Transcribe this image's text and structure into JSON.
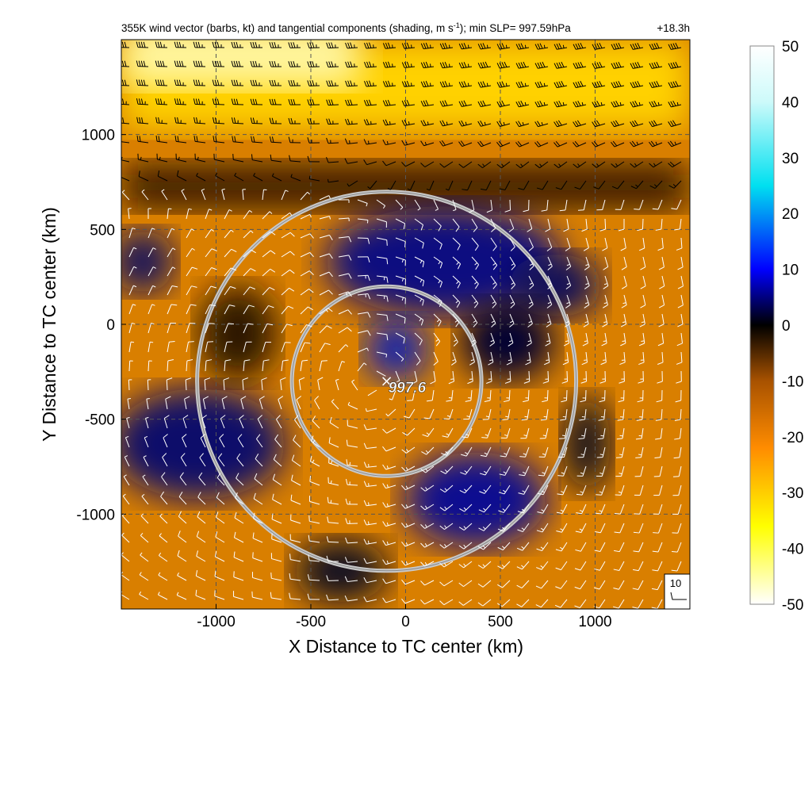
{
  "chart_data": {
    "type": "heatmap",
    "title": "355K wind vector (barbs, kt) and tangential components (shading, m s",
    "title_units_sup": "-1",
    "title_tail": "); min SLP= 997.59hPa",
    "lead_time": "+18.3h",
    "xlabel": "X Distance to TC center (km)",
    "ylabel": "Y Distance to TC center (km)",
    "xlim": [
      -1500,
      1500
    ],
    "ylim": [
      -1500,
      1500
    ],
    "xticks": [
      -1000,
      -500,
      0,
      500,
      1000
    ],
    "yticks": [
      -1000,
      -500,
      0,
      500,
      1000
    ],
    "grid": true,
    "colorbar": {
      "range": [
        -50,
        50
      ],
      "ticks": [
        50,
        40,
        30,
        20,
        10,
        0,
        -10,
        -20,
        -30,
        -40,
        -50
      ],
      "colors": [
        "#ffffff",
        "#ffff00",
        "#ffb000",
        "#ff8c00",
        "#a05000",
        "#000000",
        "#000060",
        "#0000ff",
        "#0050ff",
        "#00ffff",
        "#ffffff"
      ]
    },
    "center": {
      "x": -100,
      "y": -300,
      "min_slp_label": "997.6"
    },
    "rings_km": [
      500,
      1000
    ],
    "barb_reference": {
      "label": "10",
      "speed_kt": 10
    },
    "wind_field": {
      "background_flow": "westerly jet near y=1200 km",
      "jet_peak_kt": 45,
      "vortex_peak_kt": 15
    }
  }
}
